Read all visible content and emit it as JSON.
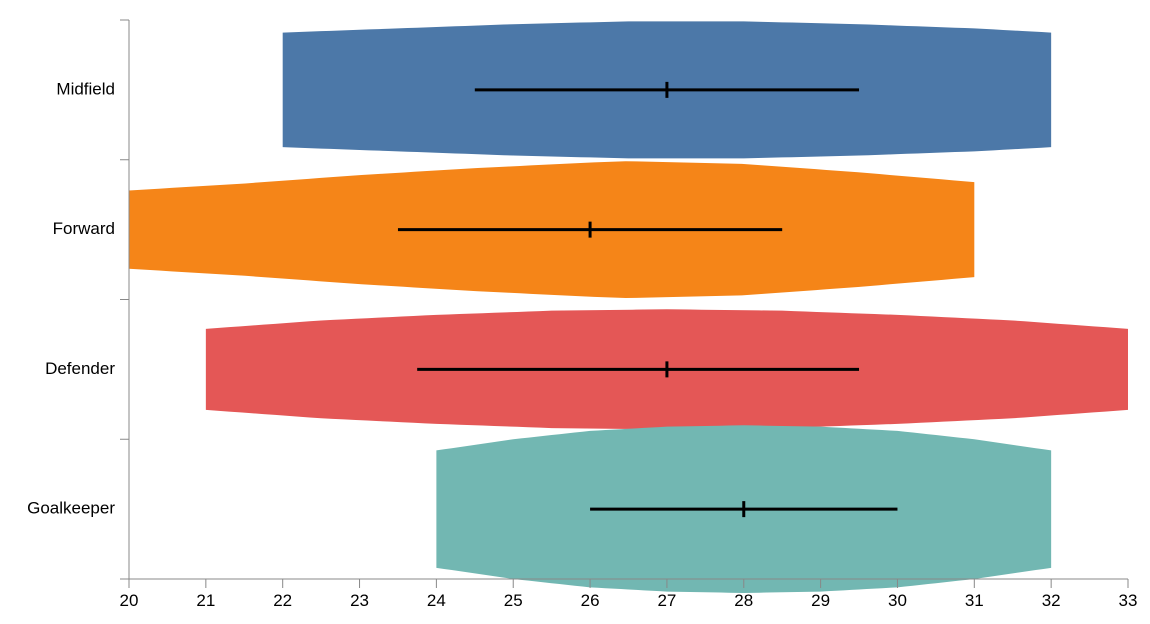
{
  "chart_data": {
    "type": "violin",
    "orientation": "horizontal",
    "x_axis": {
      "min": 20,
      "max": 33,
      "ticks": [
        20,
        21,
        22,
        23,
        24,
        25,
        26,
        27,
        28,
        29,
        30,
        31,
        32,
        33
      ]
    },
    "grid": false,
    "categories": [
      "Midfield",
      "Forward",
      "Defender",
      "Goalkeeper"
    ],
    "series": [
      {
        "category": "Midfield",
        "color": "#4c78a8",
        "range": [
          22,
          32
        ],
        "q1": 24.5,
        "median": 27,
        "q3": 29.5,
        "density": [
          [
            22,
            0.41
          ],
          [
            23.5,
            0.44
          ],
          [
            25,
            0.47
          ],
          [
            26.5,
            0.49
          ],
          [
            28,
            0.49
          ],
          [
            29.5,
            0.47
          ],
          [
            31,
            0.44
          ],
          [
            32,
            0.41
          ]
        ]
      },
      {
        "category": "Forward",
        "color": "#f58518",
        "range": [
          20,
          31
        ],
        "q1": 23.5,
        "median": 26,
        "q3": 28.5,
        "density": [
          [
            20,
            0.28
          ],
          [
            21.5,
            0.33
          ],
          [
            23,
            0.39
          ],
          [
            24.5,
            0.44
          ],
          [
            26,
            0.48
          ],
          [
            26.5,
            0.49
          ],
          [
            28,
            0.47
          ],
          [
            29.5,
            0.41
          ],
          [
            31,
            0.34
          ]
        ]
      },
      {
        "category": "Defender",
        "color": "#e45756",
        "range": [
          21,
          33
        ],
        "q1": 23.75,
        "median": 27,
        "q3": 29.5,
        "density": [
          [
            21,
            0.29
          ],
          [
            22.5,
            0.35
          ],
          [
            24,
            0.39
          ],
          [
            25.5,
            0.42
          ],
          [
            27,
            0.43
          ],
          [
            28.5,
            0.42
          ],
          [
            30,
            0.39
          ],
          [
            31.5,
            0.35
          ],
          [
            33,
            0.29
          ]
        ]
      },
      {
        "category": "Goalkeeper",
        "color": "#72b7b2",
        "range": [
          24,
          32
        ],
        "q1": 26,
        "median": 28,
        "q3": 30,
        "density": [
          [
            24,
            0.42
          ],
          [
            25,
            0.5
          ],
          [
            26,
            0.56
          ],
          [
            27,
            0.59
          ],
          [
            28,
            0.6
          ],
          [
            29,
            0.59
          ],
          [
            30,
            0.56
          ],
          [
            31,
            0.5
          ],
          [
            32,
            0.42
          ]
        ]
      }
    ]
  }
}
